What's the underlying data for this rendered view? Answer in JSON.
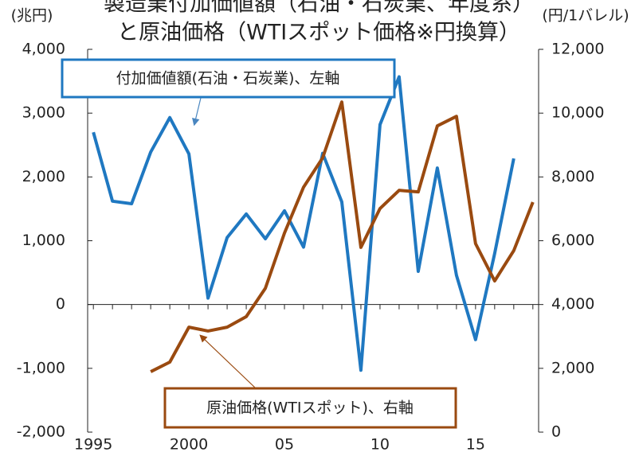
{
  "chart_data": {
    "type": "line",
    "title": "製造業付加価値額（石油・石炭業、年度系）",
    "subtitle": "と原油価格（WTIスポット価格※円換算）",
    "y_label": "(兆円)",
    "y2_label": "(円/1バレル)",
    "x": [
      1995,
      1996,
      1997,
      1998,
      1999,
      2000,
      2001,
      2002,
      2003,
      2004,
      2005,
      2006,
      2007,
      2008,
      2009,
      2010,
      2011,
      2012,
      2013,
      2014,
      2015,
      2016,
      2017,
      2018
    ],
    "xlim": [
      1994.7,
      2018.3
    ],
    "xticks": [
      {
        "value": 1995,
        "label": "1995"
      },
      {
        "value": 2000,
        "label": "2000"
      },
      {
        "value": 2005,
        "label": "05"
      },
      {
        "value": 2010,
        "label": "10"
      },
      {
        "value": 2015,
        "label": "15"
      }
    ],
    "ylim": [
      -2000,
      4000
    ],
    "yticks": [
      {
        "value": -2000,
        "label": "-2,000"
      },
      {
        "value": -1000,
        "label": "-1,000"
      },
      0,
      {
        "value": 1000,
        "label": "1,000"
      },
      {
        "value": 2000,
        "label": "2,000"
      },
      {
        "value": 3000,
        "label": "3,000"
      },
      {
        "value": 4000,
        "label": "4,000"
      }
    ],
    "y2lim": [
      0,
      12000
    ],
    "y2ticks": [
      0,
      {
        "value": 2000,
        "label": "2,000"
      },
      {
        "value": 4000,
        "label": "4,000"
      },
      {
        "value": 6000,
        "label": "6,000"
      },
      {
        "value": 8000,
        "label": "8,000"
      },
      {
        "value": 10000,
        "label": "10,000"
      },
      {
        "value": 12000,
        "label": "12,000"
      }
    ],
    "series": [
      {
        "name": "付加価値額(石油・石炭業)、左軸",
        "color": "#1f78c1",
        "values": [
          2700,
          1620,
          1580,
          2390,
          2930,
          2360,
          100,
          1050,
          1420,
          1030,
          1470,
          900,
          2370,
          1610,
          -1030,
          2820,
          3570,
          520,
          2140,
          460,
          -550,
          800,
          2290,
          null
        ]
      },
      {
        "name": "原油価格(WTIスポット)、右軸",
        "color": "#9a4a10",
        "axis": "y2",
        "values": [
          null,
          null,
          null,
          1895,
          2195,
          3290,
          3170,
          3290,
          3620,
          4510,
          6240,
          7680,
          8600,
          10350,
          5790,
          7010,
          7580,
          7530,
          9600,
          9900,
          5910,
          4740,
          5690,
          7210
        ]
      }
    ]
  }
}
